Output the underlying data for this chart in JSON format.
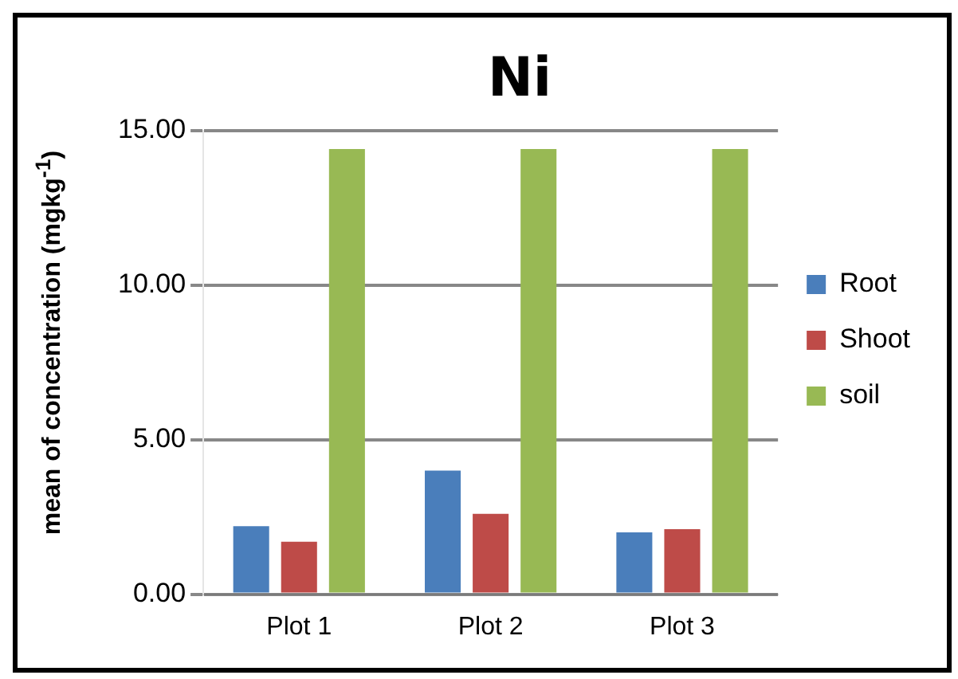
{
  "chart_data": {
    "type": "bar",
    "title": "Ni",
    "ylabel": "mean of concentration (mgkg$^{-1}$)",
    "categories": [
      "Plot 1",
      "Plot 2",
      "Plot 3"
    ],
    "series": [
      {
        "name": "Root",
        "color": "#4a7ebb",
        "values": [
          2.2,
          4.0,
          2.0
        ]
      },
      {
        "name": "Shoot",
        "color": "#be4b48",
        "values": [
          1.7,
          2.6,
          2.1
        ]
      },
      {
        "name": "soil",
        "color": "#98b954",
        "values": [
          14.4,
          14.4,
          14.4
        ]
      }
    ],
    "ylim": [
      0,
      15
    ],
    "yticks": [
      {
        "value": 0,
        "label": "0.00"
      },
      {
        "value": 5,
        "label": "5.00"
      },
      {
        "value": 10,
        "label": "10.00"
      },
      {
        "value": 15,
        "label": "15.00"
      }
    ],
    "grid": "y",
    "legend": "right"
  }
}
